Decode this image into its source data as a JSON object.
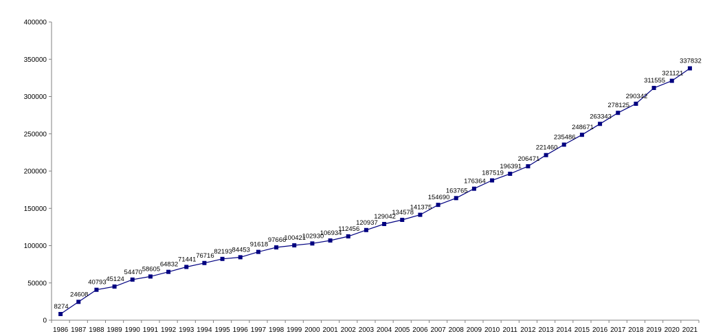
{
  "chart_data": {
    "type": "line",
    "title": "",
    "xlabel": "",
    "ylabel": "",
    "categories": [
      "1986",
      "1987",
      "1988",
      "1989",
      "1990",
      "1991",
      "1992",
      "1993",
      "1994",
      "1995",
      "1996",
      "1997",
      "1998",
      "1999",
      "2000",
      "2001",
      "2002",
      "2003",
      "2004",
      "2005",
      "2006",
      "2007",
      "2008",
      "2009",
      "2010",
      "2011",
      "2012",
      "2013",
      "2014",
      "2015",
      "2016",
      "2017",
      "2018",
      "2019",
      "2020",
      "2021"
    ],
    "series": [
      {
        "values": [
          8274,
          24608,
          40793,
          45124,
          54470,
          58605,
          64832,
          71441,
          76716,
          82193,
          84453,
          91618,
          97666,
          100421,
          102930,
          106934,
          112456,
          120937,
          129042,
          134578,
          141375,
          154690,
          163765,
          176364,
          187519,
          196391,
          206471,
          221460,
          235486,
          248671,
          263343,
          278125,
          290342,
          311555,
          321121,
          337832
        ],
        "color": "#000080",
        "marker": "square"
      }
    ],
    "ylim": [
      0,
      400000
    ],
    "yticks": [
      "0",
      "50000",
      "100000",
      "150000",
      "200000",
      "250000",
      "300000",
      "350000",
      "400000"
    ],
    "grid": false,
    "legend": "none",
    "axis_color": "#808080",
    "data_labels": true
  }
}
